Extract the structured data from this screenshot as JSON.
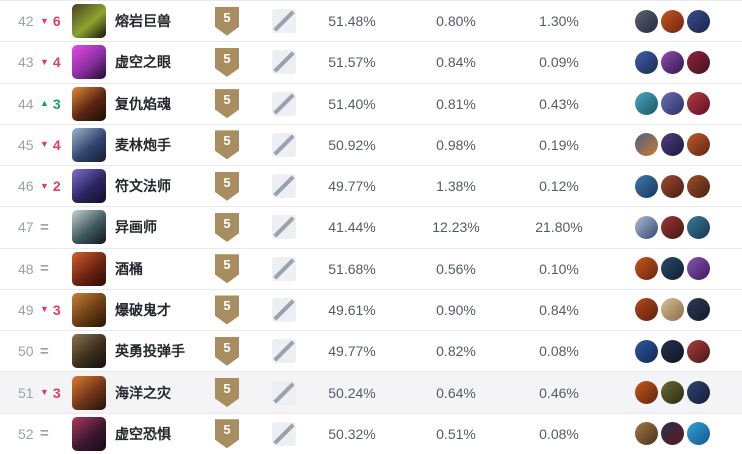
{
  "table": {
    "tier_badge_color": "#a78d5f",
    "trend_down_color": "#e23b63",
    "trend_up_color": "#14a35c",
    "highlight_row_color": "#f4f4f6",
    "rows": [
      {
        "rank": "42",
        "trend": "down",
        "trend_value": "6",
        "name": "熔岩巨兽",
        "tier": "5",
        "pct1": "51.48%",
        "pct2": "0.80%",
        "pct3": "1.30%",
        "highlighted": false,
        "icon_colors": [
          "#4a3f27",
          "#8fa32e",
          "#15100a"
        ],
        "mini_colors": [
          [
            "#5a6375",
            "#23293a"
          ],
          [
            "#c2571f",
            "#6e2410"
          ],
          [
            "#3b4f8f",
            "#18234d"
          ]
        ]
      },
      {
        "rank": "43",
        "trend": "down",
        "trend_value": "4",
        "name": "虚空之眼",
        "tier": "5",
        "pct1": "51.57%",
        "pct2": "0.84%",
        "pct3": "0.09%",
        "highlighted": false,
        "icon_colors": [
          "#e44ce8",
          "#8b2fa0",
          "#220a2c"
        ],
        "mini_colors": [
          [
            "#3f5fa8",
            "#1b2c55"
          ],
          [
            "#8a4fb0",
            "#35164d"
          ],
          [
            "#93263f",
            "#40101f"
          ]
        ]
      },
      {
        "rank": "44",
        "trend": "up",
        "trend_value": "3",
        "name": "复仇焰魂",
        "tier": "5",
        "pct1": "51.40%",
        "pct2": "0.81%",
        "pct3": "0.43%",
        "highlighted": false,
        "icon_colors": [
          "#e08a3c",
          "#5a2510",
          "#1c0d05"
        ],
        "mini_colors": [
          [
            "#49a8c0",
            "#1d5468"
          ],
          [
            "#6a6fb5",
            "#2c2f63"
          ],
          [
            "#b53a45",
            "#5e1220"
          ]
        ]
      },
      {
        "rank": "45",
        "trend": "down",
        "trend_value": "4",
        "name": "麦林炮手",
        "tier": "5",
        "pct1": "50.92%",
        "pct2": "0.98%",
        "pct3": "0.19%",
        "highlighted": false,
        "icon_colors": [
          "#9fb6cf",
          "#31456e",
          "#131c30"
        ],
        "mini_colors": [
          [
            "#4a5f8a",
            "#d07a2a"
          ],
          [
            "#4a3f7a",
            "#1e1a40"
          ],
          [
            "#c25a2a",
            "#5e2410"
          ]
        ]
      },
      {
        "rank": "46",
        "trend": "down",
        "trend_value": "2",
        "name": "符文法师",
        "tier": "5",
        "pct1": "49.77%",
        "pct2": "1.38%",
        "pct3": "0.12%",
        "highlighted": false,
        "icon_colors": [
          "#7d6fd0",
          "#2c2560",
          "#120f2c"
        ],
        "mini_colors": [
          [
            "#3f7ab0",
            "#16345c"
          ],
          [
            "#9e4a30",
            "#4a1c10"
          ],
          [
            "#a0502e",
            "#45200e"
          ]
        ]
      },
      {
        "rank": "47",
        "trend": "eq",
        "trend_value": "=",
        "name": "异画师",
        "tier": "5",
        "pct1": "41.44%",
        "pct2": "12.23%",
        "pct3": "21.80%",
        "highlighted": false,
        "icon_colors": [
          "#c7d2cf",
          "#3d5a5e",
          "#10181c"
        ],
        "mini_colors": [
          [
            "#aebfd8",
            "#31456e"
          ],
          [
            "#9e3a35",
            "#45140f"
          ],
          [
            "#3a7a9e",
            "#14384d"
          ]
        ]
      },
      {
        "rank": "48",
        "trend": "eq",
        "trend_value": "=",
        "name": "酒桶",
        "tier": "5",
        "pct1": "51.68%",
        "pct2": "0.56%",
        "pct3": "0.10%",
        "highlighted": false,
        "icon_colors": [
          "#d4622e",
          "#6e2312",
          "#2a0c05"
        ],
        "mini_colors": [
          [
            "#c2571f",
            "#6e2410"
          ],
          [
            "#2a4a66",
            "#101f33"
          ],
          [
            "#8a52b5",
            "#3a1c5c"
          ]
        ]
      },
      {
        "rank": "49",
        "trend": "down",
        "trend_value": "3",
        "name": "爆破鬼才",
        "tier": "5",
        "pct1": "49.61%",
        "pct2": "0.90%",
        "pct3": "0.84%",
        "highlighted": false,
        "icon_colors": [
          "#c98136",
          "#6b3d14",
          "#271505"
        ],
        "mini_colors": [
          [
            "#b5491f",
            "#5c1f0c"
          ],
          [
            "#d8c09a",
            "#8a6a45"
          ],
          [
            "#2e3a52",
            "#121a2a"
          ]
        ]
      },
      {
        "rank": "50",
        "trend": "eq",
        "trend_value": "=",
        "name": "英勇投弹手",
        "tier": "5",
        "pct1": "49.77%",
        "pct2": "0.82%",
        "pct3": "0.08%",
        "highlighted": false,
        "icon_colors": [
          "#8a7350",
          "#3d2f1d",
          "#141008"
        ],
        "mini_colors": [
          [
            "#2e59a0",
            "#12284f"
          ],
          [
            "#26324a",
            "#0e1624"
          ],
          [
            "#a8403f",
            "#4a1416"
          ]
        ]
      },
      {
        "rank": "51",
        "trend": "down",
        "trend_value": "3",
        "name": "海洋之灾",
        "tier": "5",
        "pct1": "50.24%",
        "pct2": "0.64%",
        "pct3": "0.46%",
        "highlighted": true,
        "icon_colors": [
          "#d97b2e",
          "#71351a",
          "#1f1209"
        ],
        "mini_colors": [
          [
            "#c05a1f",
            "#5e2408"
          ],
          [
            "#6a6a35",
            "#2a2a12"
          ],
          [
            "#31456e",
            "#131c38"
          ]
        ]
      },
      {
        "rank": "52",
        "trend": "eq",
        "trend_value": "=",
        "name": "虚空恐惧",
        "tier": "5",
        "pct1": "50.32%",
        "pct2": "0.51%",
        "pct3": "0.08%",
        "highlighted": false,
        "icon_colors": [
          "#b03a5c",
          "#3c1830",
          "#120a18"
        ],
        "mini_colors": [
          [
            "#a07a4a",
            "#4a3018"
          ],
          [
            "#2a3050",
            "#5e1a20"
          ],
          [
            "#35a0d8",
            "#105a8a"
          ]
        ]
      }
    ]
  }
}
